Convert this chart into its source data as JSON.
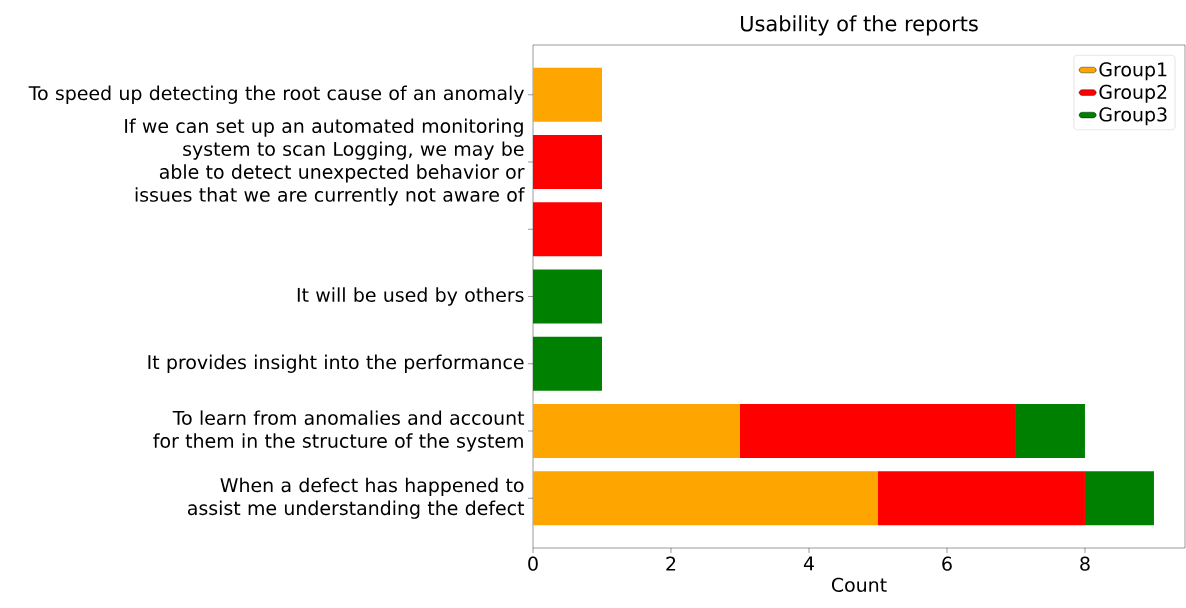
{
  "chart_data": {
    "type": "bar",
    "orientation": "horizontal",
    "stacked": true,
    "title": "Usability of the reports",
    "xlabel": "Count",
    "categories": [
      "To speed up detecting the root cause of an anomaly",
      "If we can set up an automated monitoring system to scan Logging, we may be able to detect unexpected behavior or issues that we are currently not aware of",
      null,
      "It will be used by others",
      "It provides insight into the performance",
      "To learn from anomalies and account for them in the structure of the system",
      "When a defect has happened to assist me understanding the defect"
    ],
    "series": [
      {
        "name": "Group1",
        "color": "#ffa500",
        "values": [
          1,
          null,
          null,
          null,
          null,
          3,
          5
        ]
      },
      {
        "name": "Group2",
        "color": "#ff0000",
        "values": [
          null,
          1,
          1,
          null,
          null,
          4,
          3
        ]
      },
      {
        "name": "Group3",
        "color": "#008000",
        "values": [
          null,
          null,
          null,
          1,
          1,
          1,
          1
        ]
      }
    ],
    "xlim": [
      0,
      9.45
    ],
    "xticks": [
      0,
      2,
      4,
      6,
      8
    ],
    "grid": false,
    "legend": "top right"
  }
}
